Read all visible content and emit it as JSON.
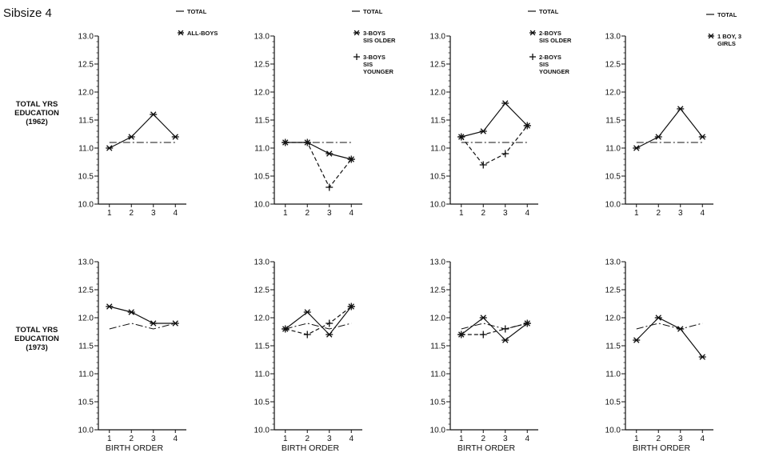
{
  "page_title": "Sibsize 4",
  "row_labels": [
    [
      "TOTAL YRS",
      "EDUCATION",
      "(1962)"
    ],
    [
      "TOTAL YRS",
      "EDUCATION",
      "(1973)"
    ]
  ],
  "chart_data": [
    {
      "type": "line",
      "row": 1,
      "col": 1,
      "x": [
        1,
        2,
        3,
        4
      ],
      "xlabel": "",
      "ylabel": "TOTAL YRS EDUCATION (1962)",
      "ylim": [
        10.0,
        13.0
      ],
      "yticks": [
        "10.0",
        "10.5",
        "11.0",
        "11.5",
        "12.0",
        "12.5",
        "13.0"
      ],
      "legend_position": "top-right",
      "series": [
        {
          "name": "TOTAL",
          "legend_lines": [
            "TOTAL"
          ],
          "style": "dashdot",
          "marker": "none",
          "values": [
            11.1,
            11.1,
            11.1,
            11.1
          ]
        },
        {
          "name": "ALL-BOYS",
          "legend_lines": [
            "ALL-BOYS"
          ],
          "style": "solid",
          "marker": "star",
          "values": [
            11.0,
            11.2,
            11.6,
            11.2
          ]
        }
      ]
    },
    {
      "type": "line",
      "row": 1,
      "col": 2,
      "x": [
        1,
        2,
        3,
        4
      ],
      "xlabel": "",
      "ylabel": "",
      "ylim": [
        10.0,
        13.0
      ],
      "yticks": [
        "10.0",
        "10.5",
        "11.0",
        "11.5",
        "12.0",
        "12.5",
        "13.0"
      ],
      "legend_position": "top-right",
      "series": [
        {
          "name": "TOTAL",
          "legend_lines": [
            "TOTAL"
          ],
          "style": "dashdot",
          "marker": "none",
          "values": [
            11.1,
            11.1,
            11.1,
            11.1
          ]
        },
        {
          "name": "3-BOYS SIS OLDER",
          "legend_lines": [
            "3-BOYS",
            "SIS OLDER"
          ],
          "style": "solid",
          "marker": "star",
          "values": [
            11.1,
            11.1,
            10.9,
            10.8
          ]
        },
        {
          "name": "3-BOYS SIS YOUNGER",
          "legend_lines": [
            "3-BOYS",
            "SIS",
            "YOUNGER"
          ],
          "style": "dashed",
          "marker": "plus",
          "values": [
            11.1,
            11.1,
            10.3,
            10.8
          ]
        }
      ]
    },
    {
      "type": "line",
      "row": 1,
      "col": 3,
      "x": [
        1,
        2,
        3,
        4
      ],
      "xlabel": "",
      "ylabel": "",
      "ylim": [
        10.0,
        13.0
      ],
      "yticks": [
        "10.0",
        "10.5",
        "11.0",
        "11.5",
        "12.0",
        "12.5",
        "13.0"
      ],
      "legend_position": "top-right",
      "series": [
        {
          "name": "TOTAL",
          "legend_lines": [
            "TOTAL"
          ],
          "style": "dashdot",
          "marker": "none",
          "values": [
            11.1,
            11.1,
            11.1,
            11.1
          ]
        },
        {
          "name": "2-BOYS SIS OLDER",
          "legend_lines": [
            "2-BOYS",
            "SIS OLDER"
          ],
          "style": "solid",
          "marker": "star",
          "values": [
            11.2,
            11.3,
            11.8,
            11.4
          ]
        },
        {
          "name": "2-BOYS SIS YOUNGER",
          "legend_lines": [
            "2-BOYS",
            "SIS",
            "YOUNGER"
          ],
          "style": "dashed",
          "marker": "plus",
          "values": [
            11.2,
            10.7,
            10.9,
            11.4
          ]
        }
      ]
    },
    {
      "type": "line",
      "row": 1,
      "col": 4,
      "x": [
        1,
        2,
        3,
        4
      ],
      "xlabel": "",
      "ylabel": "",
      "ylim": [
        10.0,
        13.0
      ],
      "yticks": [
        "10.0",
        "10.5",
        "11.0",
        "11.5",
        "12.0",
        "12.5",
        "13.0"
      ],
      "legend_position": "top-right",
      "series": [
        {
          "name": "TOTAL",
          "legend_lines": [
            "TOTAL"
          ],
          "style": "dashdot",
          "marker": "none",
          "values": [
            11.1,
            11.1,
            11.1,
            11.1
          ]
        },
        {
          "name": "1 BOY, 3 GIRLS",
          "legend_lines": [
            "1 BOY, 3",
            "GIRLS"
          ],
          "style": "solid",
          "marker": "star",
          "values": [
            11.0,
            11.2,
            11.7,
            11.2
          ]
        }
      ]
    },
    {
      "type": "line",
      "row": 2,
      "col": 1,
      "x": [
        1,
        2,
        3,
        4
      ],
      "xticks": [
        "1",
        "2",
        "3",
        "4"
      ],
      "xlabel": "BIRTH ORDER",
      "ylabel": "TOTAL YRS EDUCATION (1973)",
      "ylim": [
        10.0,
        13.0
      ],
      "yticks": [
        "10.0",
        "10.5",
        "11.0",
        "11.5",
        "12.0",
        "12.5",
        "13.0"
      ],
      "series": [
        {
          "name": "TOTAL",
          "style": "dashdot",
          "marker": "none",
          "values": [
            11.8,
            11.9,
            11.8,
            11.9
          ]
        },
        {
          "name": "ALL-BOYS",
          "style": "solid",
          "marker": "star",
          "values": [
            12.2,
            12.1,
            11.9,
            11.9
          ]
        }
      ]
    },
    {
      "type": "line",
      "row": 2,
      "col": 2,
      "x": [
        1,
        2,
        3,
        4
      ],
      "xticks": [
        "1",
        "2",
        "3",
        "4"
      ],
      "xlabel": "BIRTH ORDER",
      "ylabel": "",
      "ylim": [
        10.0,
        13.0
      ],
      "yticks": [
        "10.0",
        "10.5",
        "11.0",
        "11.5",
        "12.0",
        "12.5",
        "13.0"
      ],
      "series": [
        {
          "name": "TOTAL",
          "style": "dashdot",
          "marker": "none",
          "values": [
            11.8,
            11.9,
            11.8,
            11.9
          ]
        },
        {
          "name": "3-BOYS SIS OLDER",
          "style": "solid",
          "marker": "star",
          "values": [
            11.8,
            12.1,
            11.7,
            12.2
          ]
        },
        {
          "name": "3-BOYS SIS YOUNGER",
          "style": "dashed",
          "marker": "plus",
          "values": [
            11.8,
            11.7,
            11.9,
            12.2
          ]
        }
      ]
    },
    {
      "type": "line",
      "row": 2,
      "col": 3,
      "x": [
        1,
        2,
        3,
        4
      ],
      "xticks": [
        "1",
        "2",
        "3",
        "4"
      ],
      "xlabel": "BIRTH ORDER",
      "ylabel": "",
      "ylim": [
        10.0,
        13.0
      ],
      "yticks": [
        "10.0",
        "10.5",
        "11.0",
        "11.5",
        "12.0",
        "12.5",
        "13.0"
      ],
      "series": [
        {
          "name": "TOTAL",
          "style": "dashdot",
          "marker": "none",
          "values": [
            11.8,
            11.9,
            11.8,
            11.9
          ]
        },
        {
          "name": "2-BOYS SIS OLDER",
          "style": "solid",
          "marker": "star",
          "values": [
            11.7,
            12.0,
            11.6,
            11.9
          ]
        },
        {
          "name": "2-BOYS SIS YOUNGER",
          "style": "dashed",
          "marker": "plus",
          "values": [
            11.7,
            11.7,
            11.8,
            11.9
          ]
        }
      ]
    },
    {
      "type": "line",
      "row": 2,
      "col": 4,
      "x": [
        1,
        2,
        3,
        4
      ],
      "xticks": [
        "1",
        "2",
        "3",
        "4"
      ],
      "xlabel": "BIRTH ORDER",
      "ylabel": "",
      "ylim": [
        10.0,
        13.0
      ],
      "yticks": [
        "10.0",
        "10.5",
        "11.0",
        "11.5",
        "12.0",
        "12.5",
        "13.0"
      ],
      "series": [
        {
          "name": "TOTAL",
          "style": "dashdot",
          "marker": "none",
          "values": [
            11.8,
            11.9,
            11.8,
            11.9
          ]
        },
        {
          "name": "1 BOY, 3 GIRLS",
          "style": "solid",
          "marker": "star",
          "values": [
            11.6,
            12.0,
            11.8,
            11.3
          ]
        }
      ]
    }
  ],
  "colors": {
    "ink": "#111111",
    "background": "#ffffff"
  }
}
